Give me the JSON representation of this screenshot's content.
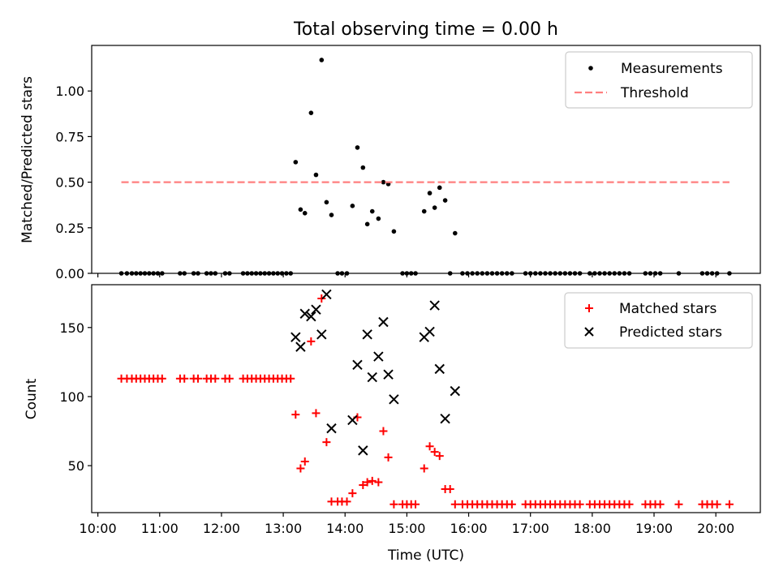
{
  "title": "Total observing time = 0.00 h",
  "colors": {
    "measurement": "#000000",
    "threshold": "#ff7f7f",
    "matched": "#ff0000",
    "predicted": "#000000",
    "axes": "#000000",
    "legend_border": "#cccccc"
  },
  "chart_data": [
    {
      "type": "scatter",
      "ylabel": "Matched/Predicted stars",
      "xlabel": "",
      "xlim_hours": [
        9.9,
        20.72
      ],
      "ylim": [
        0.0,
        1.25
      ],
      "yticks": [
        0.0,
        0.25,
        0.5,
        0.75,
        1.0
      ],
      "ytick_labels": [
        "0.00",
        "0.25",
        "0.50",
        "0.75",
        "1.00"
      ],
      "legend_loc": "upper right",
      "grid": false,
      "series": [
        {
          "name": "Measurements",
          "marker": "dot",
          "points": [
            [
              10.38,
              0
            ],
            [
              10.47,
              0
            ],
            [
              10.55,
              0
            ],
            [
              10.62,
              0
            ],
            [
              10.69,
              0
            ],
            [
              10.76,
              0
            ],
            [
              10.83,
              0
            ],
            [
              10.9,
              0
            ],
            [
              10.97,
              0
            ],
            [
              11.04,
              0
            ],
            [
              11.33,
              0
            ],
            [
              11.4,
              0
            ],
            [
              11.55,
              0
            ],
            [
              11.62,
              0
            ],
            [
              11.76,
              0
            ],
            [
              11.83,
              0
            ],
            [
              11.9,
              0
            ],
            [
              12.06,
              0
            ],
            [
              12.13,
              0
            ],
            [
              12.35,
              0
            ],
            [
              12.42,
              0
            ],
            [
              12.49,
              0
            ],
            [
              12.56,
              0
            ],
            [
              12.63,
              0
            ],
            [
              12.7,
              0
            ],
            [
              12.77,
              0
            ],
            [
              12.84,
              0
            ],
            [
              12.91,
              0
            ],
            [
              12.98,
              0
            ],
            [
              13.05,
              0
            ],
            [
              13.12,
              0
            ],
            [
              13.2,
              0.61
            ],
            [
              13.28,
              0.35
            ],
            [
              13.35,
              0.33
            ],
            [
              13.45,
              0.88
            ],
            [
              13.53,
              0.54
            ],
            [
              13.62,
              1.17
            ],
            [
              13.7,
              0.39
            ],
            [
              13.78,
              0.32
            ],
            [
              13.88,
              0
            ],
            [
              13.95,
              0
            ],
            [
              14.03,
              0
            ],
            [
              14.12,
              0.37
            ],
            [
              14.2,
              0.69
            ],
            [
              14.29,
              0.58
            ],
            [
              14.36,
              0.27
            ],
            [
              14.44,
              0.34
            ],
            [
              14.54,
              0.3
            ],
            [
              14.62,
              0.5
            ],
            [
              14.7,
              0.49
            ],
            [
              14.79,
              0.23
            ],
            [
              14.93,
              0
            ],
            [
              15.0,
              0
            ],
            [
              15.07,
              0
            ],
            [
              15.14,
              0
            ],
            [
              15.28,
              0.34
            ],
            [
              15.37,
              0.44
            ],
            [
              15.45,
              0.36
            ],
            [
              15.53,
              0.47
            ],
            [
              15.62,
              0.4
            ],
            [
              15.78,
              0.22
            ],
            [
              15.7,
              0
            ],
            [
              15.9,
              0
            ],
            [
              15.98,
              0
            ],
            [
              16.06,
              0
            ],
            [
              16.14,
              0
            ],
            [
              16.22,
              0
            ],
            [
              16.3,
              0
            ],
            [
              16.38,
              0
            ],
            [
              16.46,
              0
            ],
            [
              16.54,
              0
            ],
            [
              16.62,
              0
            ],
            [
              16.7,
              0
            ],
            [
              16.92,
              0
            ],
            [
              17.0,
              0
            ],
            [
              17.08,
              0
            ],
            [
              17.16,
              0
            ],
            [
              17.24,
              0
            ],
            [
              17.32,
              0
            ],
            [
              17.4,
              0
            ],
            [
              17.48,
              0
            ],
            [
              17.56,
              0
            ],
            [
              17.64,
              0
            ],
            [
              17.72,
              0
            ],
            [
              17.8,
              0
            ],
            [
              17.96,
              0
            ],
            [
              18.04,
              0
            ],
            [
              18.12,
              0
            ],
            [
              18.2,
              0
            ],
            [
              18.28,
              0
            ],
            [
              18.36,
              0
            ],
            [
              18.44,
              0
            ],
            [
              18.52,
              0
            ],
            [
              18.6,
              0
            ],
            [
              18.86,
              0
            ],
            [
              18.94,
              0
            ],
            [
              19.02,
              0
            ],
            [
              19.1,
              0
            ],
            [
              19.4,
              0
            ],
            [
              19.78,
              0
            ],
            [
              19.86,
              0
            ],
            [
              19.94,
              0
            ],
            [
              20.02,
              0
            ],
            [
              20.22,
              0
            ]
          ]
        },
        {
          "name": "Threshold",
          "marker": "dashed-line",
          "points": [
            [
              10.38,
              0.5
            ],
            [
              20.22,
              0.5
            ]
          ]
        }
      ]
    },
    {
      "type": "scatter",
      "ylabel": "Count",
      "xlabel": "Time (UTC)",
      "xlim_hours": [
        9.9,
        20.72
      ],
      "ylim": [
        16,
        181
      ],
      "yticks": [
        50,
        100,
        150
      ],
      "ytick_labels": [
        "50",
        "100",
        "150"
      ],
      "xticks_hours": [
        10,
        11,
        12,
        13,
        14,
        15,
        16,
        17,
        18,
        19,
        20
      ],
      "xtick_labels": [
        "10:00",
        "11:00",
        "12:00",
        "13:00",
        "14:00",
        "15:00",
        "16:00",
        "17:00",
        "18:00",
        "19:00",
        "20:00"
      ],
      "legend_loc": "upper right",
      "grid": false,
      "series": [
        {
          "name": "Matched stars",
          "marker": "plus",
          "points": [
            [
              10.38,
              113
            ],
            [
              10.47,
              113
            ],
            [
              10.55,
              113
            ],
            [
              10.62,
              113
            ],
            [
              10.69,
              113
            ],
            [
              10.76,
              113
            ],
            [
              10.83,
              113
            ],
            [
              10.9,
              113
            ],
            [
              10.97,
              113
            ],
            [
              11.04,
              113
            ],
            [
              11.33,
              113
            ],
            [
              11.4,
              113
            ],
            [
              11.55,
              113
            ],
            [
              11.62,
              113
            ],
            [
              11.76,
              113
            ],
            [
              11.83,
              113
            ],
            [
              11.9,
              113
            ],
            [
              12.06,
              113
            ],
            [
              12.13,
              113
            ],
            [
              12.35,
              113
            ],
            [
              12.42,
              113
            ],
            [
              12.49,
              113
            ],
            [
              12.56,
              113
            ],
            [
              12.63,
              113
            ],
            [
              12.7,
              113
            ],
            [
              12.77,
              113
            ],
            [
              12.84,
              113
            ],
            [
              12.91,
              113
            ],
            [
              12.98,
              113
            ],
            [
              13.05,
              113
            ],
            [
              13.12,
              113
            ],
            [
              13.2,
              87
            ],
            [
              13.28,
              48
            ],
            [
              13.35,
              53
            ],
            [
              13.45,
              140
            ],
            [
              13.53,
              88
            ],
            [
              13.62,
              171
            ],
            [
              13.7,
              67
            ],
            [
              13.78,
              24
            ],
            [
              13.88,
              24
            ],
            [
              13.95,
              24
            ],
            [
              14.03,
              24
            ],
            [
              14.12,
              30
            ],
            [
              14.2,
              85
            ],
            [
              14.29,
              36
            ],
            [
              14.36,
              38
            ],
            [
              14.44,
              39
            ],
            [
              14.54,
              38
            ],
            [
              14.62,
              75
            ],
            [
              14.7,
              56
            ],
            [
              14.79,
              22
            ],
            [
              14.93,
              22
            ],
            [
              15.0,
              22
            ],
            [
              15.07,
              22
            ],
            [
              15.14,
              22
            ],
            [
              15.28,
              48
            ],
            [
              15.37,
              64
            ],
            [
              15.45,
              60
            ],
            [
              15.53,
              57
            ],
            [
              15.62,
              33
            ],
            [
              15.7,
              33
            ],
            [
              15.78,
              22
            ],
            [
              15.9,
              22
            ],
            [
              15.98,
              22
            ],
            [
              16.06,
              22
            ],
            [
              16.14,
              22
            ],
            [
              16.22,
              22
            ],
            [
              16.3,
              22
            ],
            [
              16.38,
              22
            ],
            [
              16.46,
              22
            ],
            [
              16.54,
              22
            ],
            [
              16.62,
              22
            ],
            [
              16.7,
              22
            ],
            [
              16.92,
              22
            ],
            [
              17.0,
              22
            ],
            [
              17.08,
              22
            ],
            [
              17.16,
              22
            ],
            [
              17.24,
              22
            ],
            [
              17.32,
              22
            ],
            [
              17.4,
              22
            ],
            [
              17.48,
              22
            ],
            [
              17.56,
              22
            ],
            [
              17.64,
              22
            ],
            [
              17.72,
              22
            ],
            [
              17.8,
              22
            ],
            [
              17.96,
              22
            ],
            [
              18.04,
              22
            ],
            [
              18.12,
              22
            ],
            [
              18.2,
              22
            ],
            [
              18.28,
              22
            ],
            [
              18.36,
              22
            ],
            [
              18.44,
              22
            ],
            [
              18.52,
              22
            ],
            [
              18.6,
              22
            ],
            [
              18.86,
              22
            ],
            [
              18.94,
              22
            ],
            [
              19.02,
              22
            ],
            [
              19.1,
              22
            ],
            [
              19.4,
              22
            ],
            [
              19.78,
              22
            ],
            [
              19.86,
              22
            ],
            [
              19.94,
              22
            ],
            [
              20.02,
              22
            ],
            [
              20.22,
              22
            ]
          ]
        },
        {
          "name": "Predicted stars",
          "marker": "x",
          "points": [
            [
              13.2,
              143
            ],
            [
              13.28,
              136
            ],
            [
              13.35,
              160
            ],
            [
              13.45,
              158
            ],
            [
              13.53,
              163
            ],
            [
              13.62,
              145
            ],
            [
              13.7,
              174
            ],
            [
              13.78,
              77
            ],
            [
              14.12,
              83
            ],
            [
              14.2,
              123
            ],
            [
              14.29,
              61
            ],
            [
              14.36,
              145
            ],
            [
              14.44,
              114
            ],
            [
              14.54,
              129
            ],
            [
              14.62,
              154
            ],
            [
              14.7,
              116
            ],
            [
              14.79,
              98
            ],
            [
              15.28,
              143
            ],
            [
              15.37,
              147
            ],
            [
              15.45,
              166
            ],
            [
              15.53,
              120
            ],
            [
              15.62,
              84
            ],
            [
              15.78,
              104
            ]
          ]
        }
      ]
    }
  ]
}
